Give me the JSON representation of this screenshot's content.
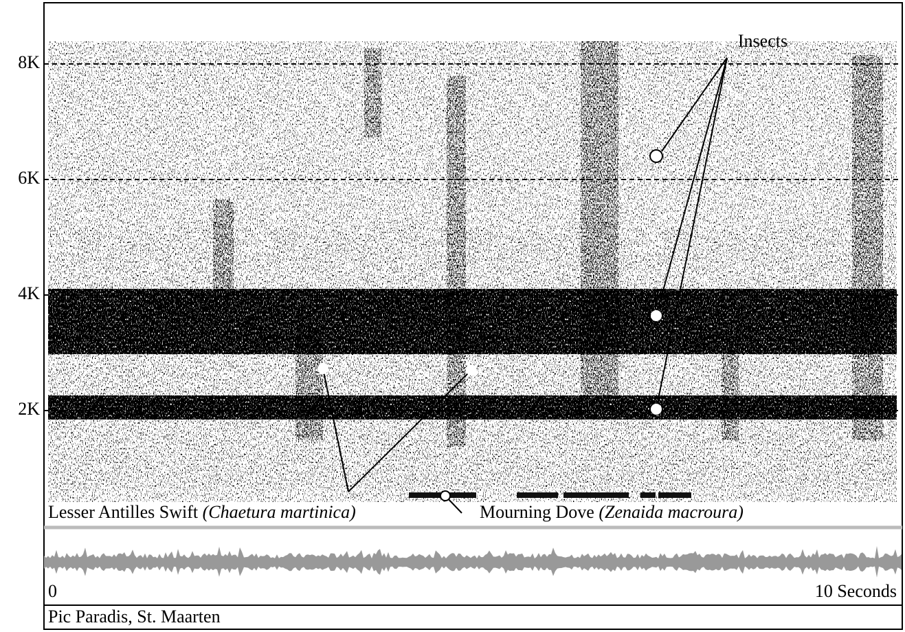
{
  "chart_data": {
    "type": "spectrogram",
    "ylim": [
      0,
      9000
    ],
    "yticks": [
      {
        "value": 2000,
        "label": "2K"
      },
      {
        "value": 4000,
        "label": "4K"
      },
      {
        "value": 6000,
        "label": "6K"
      },
      {
        "value": 8000,
        "label": "8K"
      }
    ],
    "xlim": [
      0,
      10
    ],
    "xticks": [
      0,
      {
        "value": 10,
        "label": "10 Seconds"
      }
    ],
    "grid": true,
    "annotations": [
      {
        "text": "Insects"
      },
      {
        "text": "Lesser Antilles Swift",
        "latin": "(Chaetura martinica)"
      },
      {
        "text": "Mourning Dove",
        "latin": "(Zenaida macroura)"
      }
    ],
    "caption": "Pic Paradis, St. Maarten"
  }
}
